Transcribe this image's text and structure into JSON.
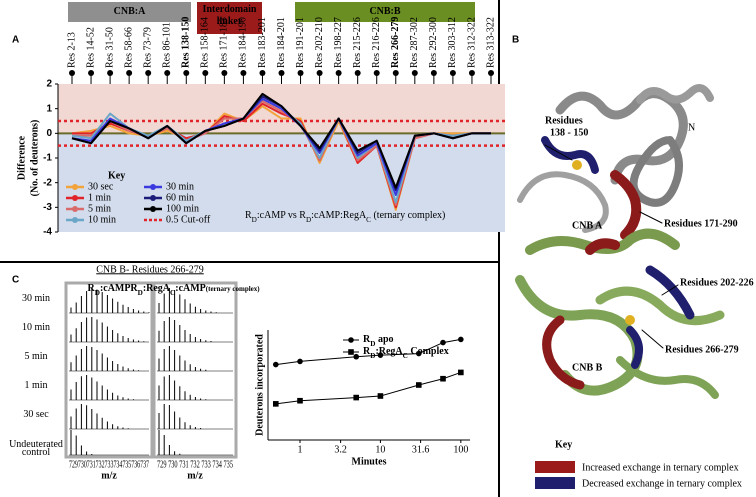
{
  "panel_labels": [
    "A",
    "B",
    "C"
  ],
  "chart_data": [
    {
      "type": "line",
      "domains": [
        {
          "label": [
            "CNB:A"
          ],
          "color": "#8f8f8f"
        },
        {
          "label": [
            "Interdomain",
            "linker"
          ],
          "color": "#9b1b1b"
        },
        {
          "label": [
            "CNB:B"
          ],
          "color": "#6b8e23"
        }
      ],
      "categories": [
        "Res 2-13",
        "Res 14-52",
        "Res 31-50",
        "Res 58-66",
        "Res 73-79",
        "Res 86-101",
        "Res 138-150",
        "Res 158-164",
        "Res 171-183",
        "Res 184-190",
        "Res 183-201",
        "Res 184-201",
        "Res 191-201",
        "Res 202-210",
        "Res 198-227",
        "Res 215-226",
        "Res 216-226",
        "Res 266-279",
        "Res 287-302",
        "Res 292-300",
        "Res 303-312",
        "Res 312-322",
        "Res 313-322"
      ],
      "highlight_index": [
        6,
        17
      ],
      "highlight_color": "#e0242a",
      "ylabel": [
        "Difference",
        "(No. of deuterons)"
      ],
      "ylim": [
        -4,
        2
      ],
      "yticks": [
        -4,
        -3,
        -2,
        -1,
        0,
        1,
        2
      ],
      "background": {
        "above": "#f1d8d3",
        "below": "#d3dcec"
      },
      "key_title": "Key",
      "series": [
        {
          "name": "30 sec",
          "color": "#f2a33a",
          "values": [
            0.0,
            0.1,
            0.3,
            0.0,
            -0.1,
            0.1,
            -0.2,
            0.0,
            0.8,
            0.5,
            1.1,
            0.6,
            0.6,
            -1.2,
            0.5,
            -1.2,
            -0.5,
            -3.1,
            -0.2,
            0.0,
            0.0,
            0.0,
            0.0
          ]
        },
        {
          "name": "1 min",
          "color": "#e0242a",
          "values": [
            0.0,
            0.0,
            0.4,
            0.1,
            -0.1,
            0.2,
            -0.2,
            0.0,
            0.7,
            0.5,
            1.2,
            0.8,
            0.5,
            -1.1,
            0.6,
            -1.2,
            -0.5,
            -3.0,
            -0.2,
            0.0,
            -0.1,
            0.0,
            0.0
          ]
        },
        {
          "name": "5 min",
          "color": "#d96a6a",
          "values": [
            -0.1,
            -0.1,
            0.5,
            0.1,
            -0.1,
            0.2,
            -0.3,
            0.0,
            0.6,
            0.6,
            1.3,
            0.9,
            0.4,
            -1.1,
            0.6,
            -1.1,
            -0.5,
            -2.9,
            -0.2,
            0.0,
            -0.1,
            0.0,
            0.0
          ]
        },
        {
          "name": "10 min",
          "color": "#6aa6c8",
          "values": [
            -0.1,
            -0.2,
            0.8,
            0.2,
            -0.1,
            0.3,
            -0.3,
            0.1,
            0.4,
            0.6,
            1.4,
            1.0,
            0.4,
            -1.0,
            0.6,
            -1.0,
            -0.4,
            -2.8,
            -0.1,
            0.0,
            -0.1,
            0.0,
            0.0
          ]
        },
        {
          "name": "30 min",
          "color": "#3a3adf",
          "values": [
            -0.2,
            -0.3,
            0.6,
            0.2,
            -0.2,
            0.3,
            -0.4,
            0.1,
            0.4,
            0.6,
            1.4,
            1.0,
            0.3,
            -0.8,
            0.6,
            -0.9,
            -0.4,
            -2.5,
            -0.1,
            0.0,
            -0.2,
            0.0,
            0.0
          ]
        },
        {
          "name": "60 min",
          "color": "#1c1c7a",
          "values": [
            -0.2,
            -0.4,
            0.5,
            0.2,
            -0.2,
            0.3,
            -0.4,
            0.1,
            0.3,
            0.6,
            1.5,
            1.1,
            0.3,
            -0.7,
            0.6,
            -0.8,
            -0.3,
            -2.3,
            -0.1,
            0.0,
            -0.2,
            0.0,
            0.0
          ]
        },
        {
          "name": "100 min",
          "color": "#000000",
          "values": [
            -0.2,
            -0.4,
            0.5,
            0.2,
            -0.2,
            0.3,
            -0.4,
            0.1,
            0.3,
            0.6,
            1.6,
            1.1,
            0.3,
            -0.6,
            0.6,
            -0.7,
            -0.3,
            -2.2,
            -0.1,
            0.0,
            -0.2,
            0.0,
            0.0
          ]
        }
      ],
      "cutoff": {
        "name": "0.5 Cut-off",
        "values": [
          0.5,
          -0.5
        ],
        "color": "#e0242a"
      },
      "annotation": [
        {
          "text": "R"
        },
        {
          "text": "D",
          "sub": true
        },
        {
          "text": ":cAMP  vs  R"
        },
        {
          "text": "D",
          "sub": true
        },
        {
          "text": ":cAMP:RegA"
        },
        {
          "text": "C",
          "sub": true
        },
        {
          "text": " (ternary complex)"
        }
      ]
    },
    {
      "type": "line",
      "xlog": true,
      "xlabel": "Minutes",
      "ylabel": "Deuterons incorporated",
      "xlim": [
        0.4,
        130
      ],
      "xticks": [
        1,
        3.2,
        10,
        31.6,
        100
      ],
      "ylim": [
        0,
        7
      ],
      "x": [
        0.5,
        1,
        5,
        10,
        30,
        60,
        100
      ],
      "series": [
        {
          "name": [
            {
              "text": "R"
            },
            {
              "text": "D",
              "sub": true
            },
            {
              "text": " apo"
            }
          ],
          "marker": "circle",
          "color": "#000000",
          "values": [
            4.8,
            5.0,
            5.3,
            5.4,
            5.5,
            6.2,
            6.4
          ]
        },
        {
          "name": [
            {
              "text": "R"
            },
            {
              "text": "D",
              "sub": true
            },
            {
              "text": ":RegA"
            },
            {
              "text": "C",
              "sub": true
            },
            {
              "text": " Complex"
            }
          ],
          "marker": "square",
          "color": "#000000",
          "values": [
            2.3,
            2.5,
            2.7,
            2.8,
            3.5,
            3.9,
            4.3
          ]
        }
      ]
    }
  ],
  "spectra": {
    "title": "CNB B- Residues 266-279",
    "columns": [
      [
        {
          "text": "R"
        },
        {
          "text": "D",
          "sub": true
        },
        {
          "text": ":cAMP"
        }
      ],
      [
        {
          "text": "R"
        },
        {
          "text": "D",
          "sub": true
        },
        {
          "text": ":RegA"
        },
        {
          "text": "C",
          "sub": true
        },
        {
          "text": ":cAMP"
        },
        {
          "text": "(ternary complex)",
          "small": true
        }
      ]
    ],
    "rows": [
      {
        "label": [
          "30 min"
        ],
        "left": [
          22,
          42,
          68,
          88,
          100,
          94,
          84,
          72,
          58,
          45,
          33,
          24,
          16,
          10,
          6,
          3
        ],
        "right": [
          40,
          78,
          100,
          92,
          74,
          55,
          38,
          25,
          16,
          10,
          6,
          3
        ]
      },
      {
        "label": [
          "10 min"
        ],
        "left": [
          30,
          55,
          80,
          98,
          100,
          90,
          78,
          62,
          48,
          35,
          24,
          16,
          10,
          6,
          3
        ],
        "right": [
          45,
          84,
          100,
          88,
          68,
          48,
          32,
          20,
          12,
          7,
          4
        ]
      },
      {
        "label": [
          "5 min"
        ],
        "left": [
          35,
          62,
          88,
          100,
          96,
          84,
          70,
          54,
          40,
          28,
          18,
          11,
          6,
          3
        ],
        "right": [
          50,
          88,
          100,
          84,
          62,
          42,
          27,
          16,
          9,
          5
        ]
      },
      {
        "label": [
          "1 min"
        ],
        "left": [
          42,
          72,
          95,
          100,
          90,
          74,
          58,
          42,
          29,
          18,
          11,
          6,
          3
        ],
        "right": [
          58,
          94,
          100,
          78,
          55,
          35,
          21,
          12,
          6,
          3
        ]
      },
      {
        "label": [
          "30 sec"
        ],
        "left": [
          50,
          82,
          100,
          95,
          80,
          62,
          45,
          30,
          19,
          11,
          6,
          3
        ],
        "right": [
          64,
          100,
          96,
          70,
          46,
          27,
          15,
          8,
          4
        ]
      },
      {
        "label": [
          "Undeuterated",
          "control"
        ],
        "left": [
          100,
          78,
          38,
          14,
          4
        ],
        "right": [
          100,
          80,
          40,
          15,
          5
        ]
      }
    ],
    "axis_labels": [
      "729730731732733734735736737",
      "729 730 731 732 733 734 735"
    ],
    "xlabel": "m/z"
  },
  "structure": {
    "labels": {
      "res138": [
        "Residues",
        "138 - 150"
      ],
      "n_term": "N",
      "cnb_a": "CNB A",
      "res171": "Residues 171-290",
      "res202": "Residues 202-226",
      "cnb_b": "CNB B",
      "res266": "Residues 266-279"
    },
    "key": {
      "title": "Key",
      "items": [
        {
          "label": "Increased exchange in ternary complex",
          "color": "#9b1b1b"
        },
        {
          "label": "Decreased exchange in ternary complex",
          "color": "#1f1f6e"
        }
      ]
    }
  }
}
